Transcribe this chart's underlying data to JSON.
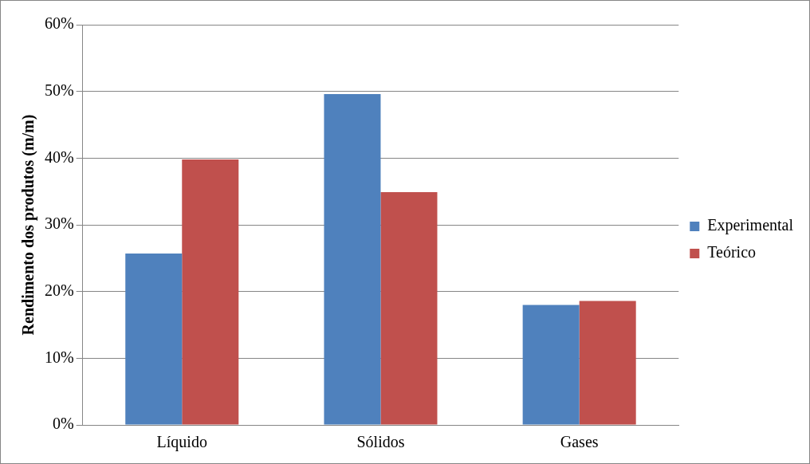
{
  "chart_data": {
    "type": "bar",
    "ylabel": "Rendimento dos produtos (m/m)",
    "categories": [
      "Líquido",
      "Sólidos",
      "Gases"
    ],
    "series": [
      {
        "name": "Experimental",
        "color": "#4f81bd",
        "values": [
          25.7,
          49.6,
          18.0
        ]
      },
      {
        "name": "Teórico",
        "color": "#c0504d",
        "values": [
          39.8,
          34.9,
          18.6
        ]
      }
    ],
    "ylim": [
      0,
      60
    ],
    "yticks": [
      {
        "value": 0,
        "label": "0%"
      },
      {
        "value": 10,
        "label": "10%"
      },
      {
        "value": 20,
        "label": "20%"
      },
      {
        "value": 30,
        "label": "30%"
      },
      {
        "value": 40,
        "label": "40%"
      },
      {
        "value": 50,
        "label": "50%"
      },
      {
        "value": 60,
        "label": "60%"
      }
    ],
    "grid": "y",
    "legend": "right"
  }
}
